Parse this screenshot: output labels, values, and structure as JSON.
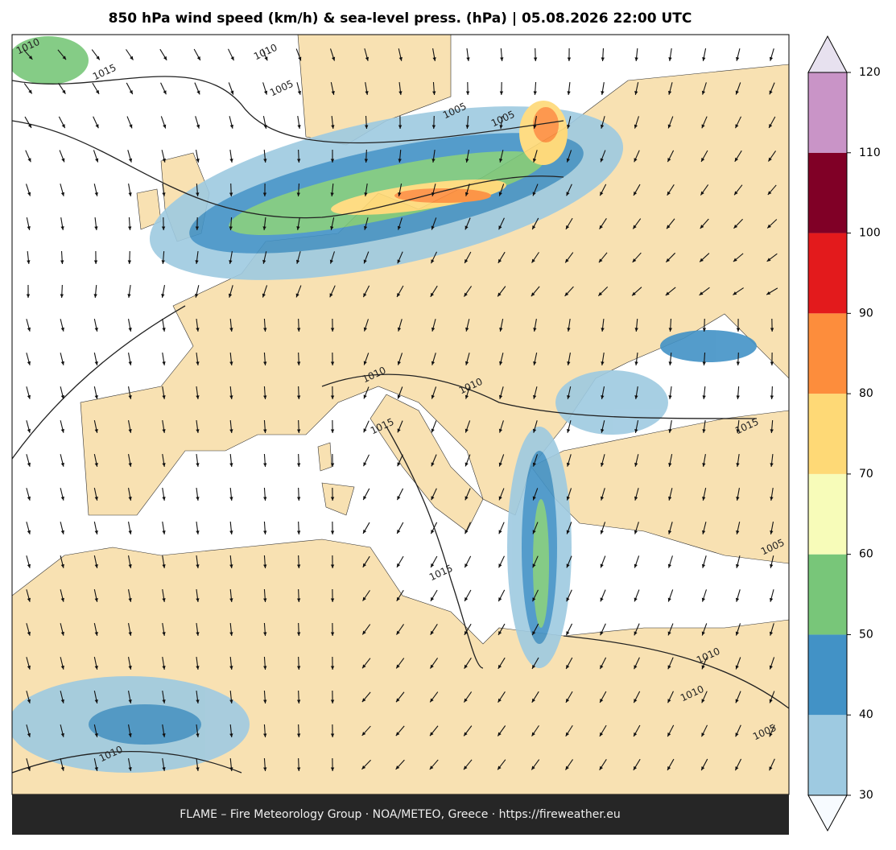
{
  "title": "850 hPa wind speed (km/h) & sea-level press. (hPa)  |  05.08.2026 22:00 UTC",
  "colorbar": {
    "ticks": [
      30,
      40,
      50,
      60,
      70,
      80,
      90,
      100,
      110,
      120
    ],
    "colors": [
      "#9ecae1",
      "#4292c6",
      "#78c679",
      "#f7fcb9",
      "#fed976",
      "#fd8d3c",
      "#e31a1c",
      "#800026",
      "#c994c7"
    ],
    "under_color": "#f7fbff",
    "over_color": "#e7e1ef"
  },
  "isobar_labels": [
    1010,
    1015,
    1010,
    1005,
    1005,
    1005,
    1010,
    1015,
    1010,
    1015,
    1015,
    1010,
    1010,
    1005,
    1010,
    1005
  ],
  "footer": "FLAME – Fire Meteorology Group · NOA/METEO, Greece · https://fireweather.eu"
}
